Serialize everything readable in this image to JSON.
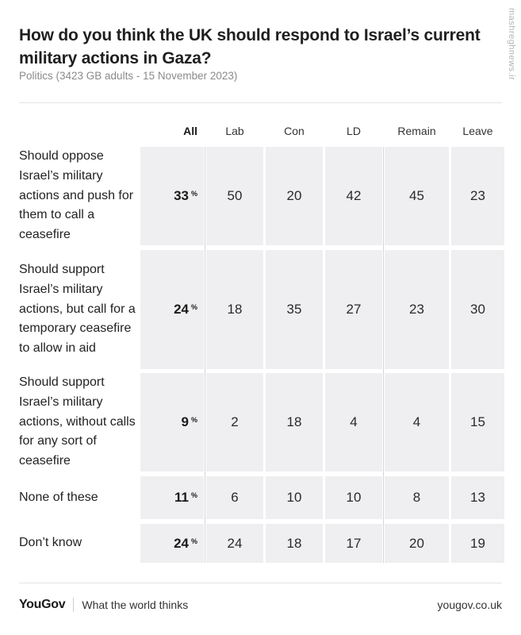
{
  "header": {
    "title": "How do you think the UK should respond to Israel’s current military actions in Gaza?",
    "subtitle": "Politics (3423 GB adults - 15 November 2023)",
    "watermark": "mashreghnews.ir"
  },
  "chart_data": {
    "type": "table",
    "title": "How do you think the UK should respond to Israel’s current military actions in Gaza?",
    "columns": [
      "All",
      "Lab",
      "Con",
      "LD",
      "Remain",
      "Leave"
    ],
    "percent_suffix": "%",
    "rows": [
      {
        "label": "Should oppose Israel’s military actions and push for them to call a ceasefire",
        "values": [
          33,
          50,
          20,
          42,
          45,
          23
        ]
      },
      {
        "label": "Should support Israel’s military actions, but call for a temporary ceasefire to allow in aid",
        "values": [
          24,
          18,
          35,
          27,
          23,
          30
        ]
      },
      {
        "label": "Should support Israel’s military actions, without calls for any sort of ceasefire",
        "values": [
          9,
          2,
          18,
          4,
          4,
          15
        ]
      },
      {
        "label": "None of these",
        "values": [
          11,
          6,
          10,
          10,
          8,
          13
        ]
      },
      {
        "label": "Don’t know",
        "values": [
          24,
          24,
          18,
          17,
          20,
          19
        ]
      }
    ]
  },
  "footer": {
    "logo": "YouGov",
    "tagline": "What the world thinks",
    "url": "yougov.co.uk"
  }
}
